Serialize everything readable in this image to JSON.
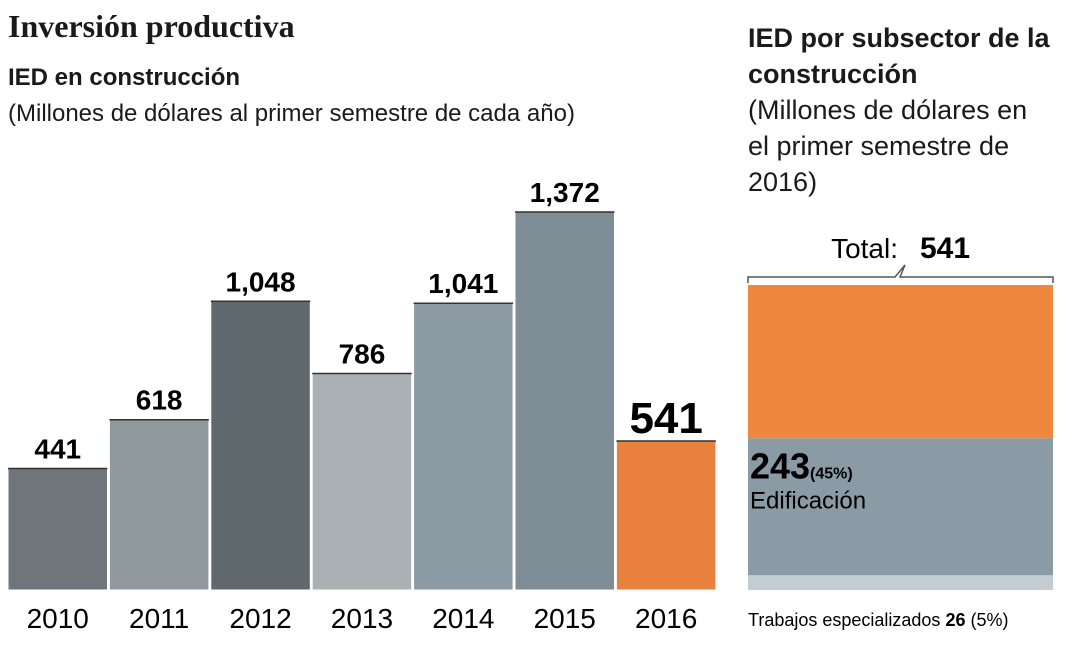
{
  "header": {
    "title": "Inversión productiva"
  },
  "chart_data": [
    {
      "type": "bar",
      "title": "IED en construcción",
      "subtitle": "(Millones de dólares al primer semestre de cada año)",
      "categories": [
        "2010",
        "2011",
        "2012",
        "2013",
        "2014",
        "2015",
        "2016"
      ],
      "values": [
        441,
        618,
        1048,
        786,
        1041,
        1372,
        541
      ],
      "value_labels": [
        "441",
        "618",
        "1,048",
        "786",
        "1,041",
        "1,372",
        "541"
      ],
      "colors": [
        "#6e767b",
        "#8f989d",
        "#5f686d",
        "#a9b1b5",
        "#8c9aa3",
        "#7f8d96",
        "#e8823e"
      ]
    },
    {
      "type": "stacked-bar",
      "title": "IED por subsector de la construcción",
      "subtitle": "(Millones de dólares en el primer semestre de 2016)",
      "total_label": "Total:",
      "total": 541,
      "series": [
        {
          "name": null,
          "color": "#f0873f",
          "values": [
            272
          ]
        },
        {
          "name": "Edificación",
          "color": "#8a9ba6",
          "values": [
            243
          ],
          "share_label": "(45%)"
        },
        {
          "name": "Trabajos especializados",
          "color": "#c3ccd1",
          "values": [
            26
          ],
          "share_label": "(5%)"
        }
      ]
    }
  ]
}
